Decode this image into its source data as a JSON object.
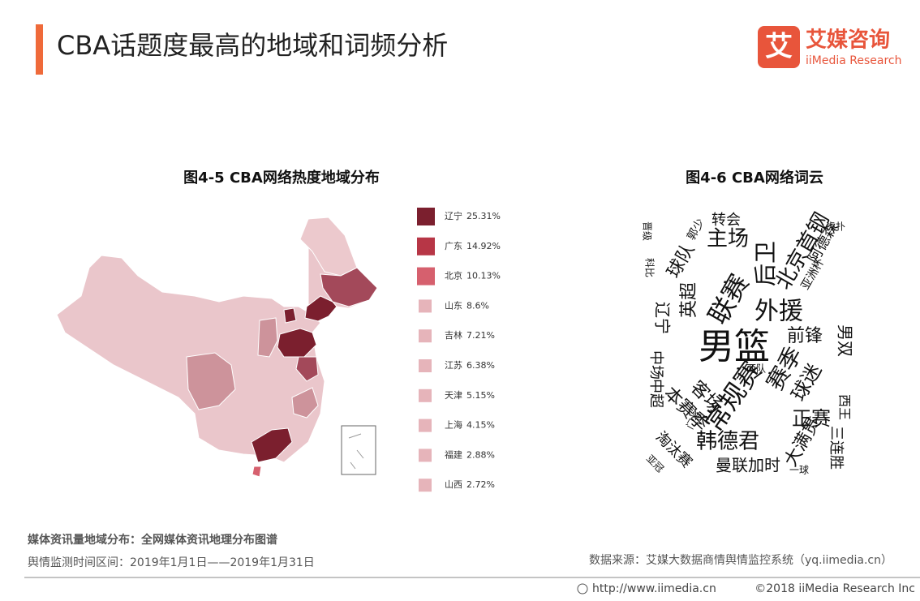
{
  "header": {
    "title": "CBA话题度最高的地域和词频分析",
    "logo_cn": "艾媒咨询",
    "logo_en": "iiMedia Research",
    "logo_mark": "艾"
  },
  "map": {
    "title": "图4-5  CBA网络热度地域分布",
    "legend": [
      {
        "name": "辽宁",
        "value": "25.31%",
        "color": "#7b1f2e"
      },
      {
        "name": "广东",
        "value": "14.92%",
        "color": "#b73646"
      },
      {
        "name": "北京",
        "value": "10.13%",
        "color": "#d6606e"
      },
      {
        "name": "山东",
        "value": "8.6%",
        "color": "#e6b4ba"
      },
      {
        "name": "吉林",
        "value": "7.21%",
        "color": "#e6b4ba"
      },
      {
        "name": "江苏",
        "value": "6.38%",
        "color": "#e6b4ba"
      },
      {
        "name": "天津",
        "value": "5.15%",
        "color": "#e6b4ba"
      },
      {
        "name": "上海",
        "value": "4.15%",
        "color": "#e6b4ba"
      },
      {
        "name": "福建",
        "value": "2.88%",
        "color": "#e6b4ba"
      },
      {
        "name": "山西",
        "value": "2.72%",
        "color": "#e6b4ba"
      }
    ]
  },
  "cloud": {
    "title": "图4-6  CBA网络词云",
    "words": [
      "男篮",
      "常规赛",
      "联赛",
      "外援",
      "北京首钢",
      "后卫",
      "主场",
      "转会",
      "英超",
      "前锋",
      "男双",
      "赛季",
      "球迷",
      "正赛",
      "韩德君",
      "大满贯",
      "曼联加时",
      "本赛季",
      "客场",
      "中超",
      "中场",
      "淘汰赛",
      "三连胜",
      "西王",
      "辽宁",
      "球队",
      "郭少",
      "晋级",
      "阿德森",
      "虎扑",
      "亚洲杯",
      "两队",
      "门将",
      "亚冠",
      "一球",
      "科比"
    ]
  },
  "footer": {
    "source_note": "媒体资讯量地域分布：全网媒体资讯地理分布图谱",
    "period": "舆情监测时间区间：2019年1月1日——2019年1月31日",
    "data_source": "数据来源：艾媒大数据商情舆情监控系统（yq.iimedia.cn）",
    "url": "http://www.iimedia.cn",
    "copyright": "©2018  iiMedia Research  Inc"
  }
}
